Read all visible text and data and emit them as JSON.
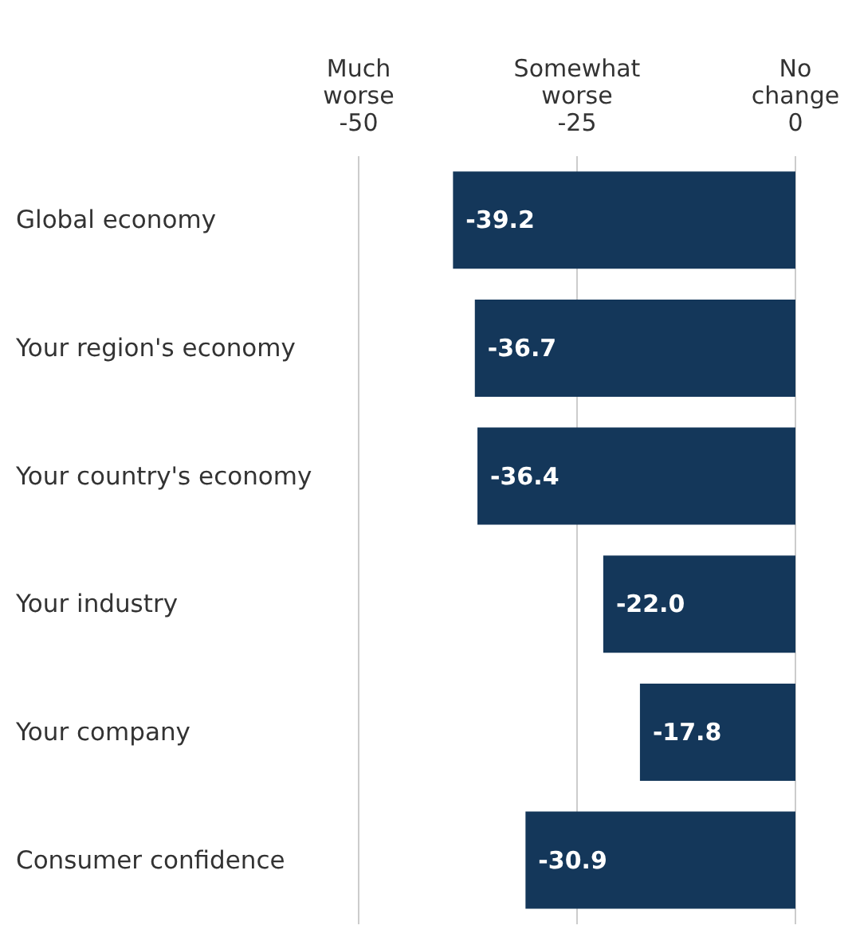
{
  "chart_data": {
    "type": "bar",
    "orientation": "horizontal",
    "categories": [
      "Global economy",
      "Your region's economy",
      "Your country's economy",
      "Your industry",
      "Your company",
      "Consumer confidence"
    ],
    "values": [
      -39.2,
      -36.7,
      -36.4,
      -22.0,
      -17.8,
      -30.9
    ],
    "value_labels": [
      "-39.2",
      "-36.7",
      "-36.4",
      "-22.0",
      "-17.8",
      "-30.9"
    ],
    "color": "#14375a",
    "grid": "x",
    "xlim": [
      -50,
      0
    ],
    "xticks": [
      {
        "value": -50,
        "label": "Much worse -50"
      },
      {
        "value": -25,
        "label": "Somewhat worse -25"
      },
      {
        "value": 0,
        "label": "No change 0"
      }
    ]
  }
}
